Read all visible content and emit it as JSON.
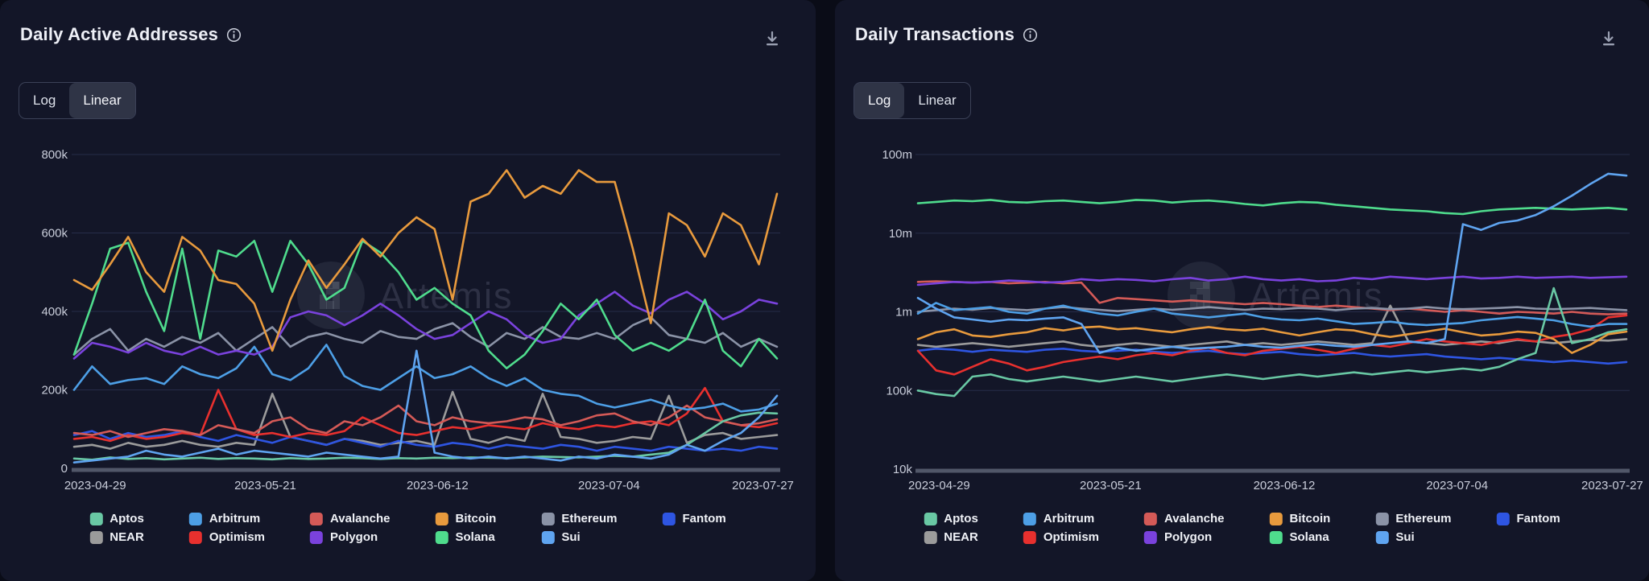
{
  "page": {
    "background": "#0a0c17",
    "panel_background": "#131628",
    "gridline_color": "#262c49",
    "axis_line_color": "#515769",
    "tick_label_color": "#c9cdda"
  },
  "watermark": {
    "text": "Artemis",
    "logo": "artemis-pixel-a-logo"
  },
  "panels": [
    {
      "title": "Daily Active Addresses",
      "info_icon": "info-circle-icon",
      "download_icon": "download-icon",
      "scale_toggle": {
        "options": [
          "Log",
          "Linear"
        ],
        "selected": "Linear"
      }
    },
    {
      "title": "Daily Transactions",
      "info_icon": "info-circle-icon",
      "download_icon": "download-icon",
      "scale_toggle": {
        "options": [
          "Log",
          "Linear"
        ],
        "selected": "Log"
      }
    }
  ],
  "legend": [
    {
      "name": "Aptos",
      "color": "#69c8a4"
    },
    {
      "name": "Arbitrum",
      "color": "#4d9fe6"
    },
    {
      "name": "Avalanche",
      "color": "#d45a57"
    },
    {
      "name": "Bitcoin",
      "color": "#e89a3d"
    },
    {
      "name": "Ethereum",
      "color": "#8b93a7"
    },
    {
      "name": "Fantom",
      "color": "#2e55e2"
    },
    {
      "name": "NEAR",
      "color": "#9b9b9b"
    },
    {
      "name": "Optimism",
      "color": "#e8302e"
    },
    {
      "name": "Polygon",
      "color": "#7a42dd"
    },
    {
      "name": "Solana",
      "color": "#4fdc8d"
    },
    {
      "name": "Sui",
      "color": "#5fa4f0"
    }
  ],
  "chart_data": [
    {
      "type": "line",
      "title": "Daily Active Addresses",
      "yscale": "linear",
      "value_unit": "thousands",
      "ylim_k": [
        0,
        800
      ],
      "yticks": [
        {
          "value_k": 800,
          "label": "800k"
        },
        {
          "value_k": 600,
          "label": "600k"
        },
        {
          "value_k": 400,
          "label": "400k"
        },
        {
          "value_k": 200,
          "label": "200k"
        },
        {
          "value_k": 0,
          "label": "0"
        }
      ],
      "xticks": [
        "2023-04-29",
        "2023-05-21",
        "2023-06-12",
        "2023-07-04",
        "2023-07-27"
      ],
      "series": [
        {
          "name": "Aptos",
          "values_k": [
            25,
            22,
            28,
            24,
            26,
            23,
            25,
            27,
            24,
            26,
            25,
            23,
            26,
            24,
            25,
            27,
            26,
            24,
            26,
            25,
            27,
            26,
            28,
            27,
            26,
            28,
            30,
            29,
            28,
            30,
            32,
            30,
            35,
            40,
            60,
            90,
            120,
            135,
            142,
            140
          ]
        },
        {
          "name": "Arbitrum",
          "values_k": [
            200,
            260,
            215,
            225,
            230,
            215,
            260,
            240,
            230,
            255,
            310,
            240,
            225,
            255,
            315,
            235,
            210,
            200,
            230,
            260,
            230,
            240,
            260,
            230,
            210,
            230,
            200,
            190,
            185,
            165,
            155,
            165,
            175,
            160,
            150,
            155,
            165,
            145,
            150,
            165
          ]
        },
        {
          "name": "Avalanche",
          "values_k": [
            90,
            85,
            95,
            80,
            90,
            100,
            95,
            85,
            110,
            100,
            90,
            120,
            130,
            100,
            90,
            120,
            110,
            130,
            160,
            120,
            110,
            130,
            120,
            115,
            120,
            130,
            125,
            110,
            120,
            135,
            140,
            120,
            110,
            130,
            160,
            130,
            120,
            110,
            115,
            125
          ]
        },
        {
          "name": "Bitcoin",
          "values_k": [
            480,
            455,
            520,
            590,
            500,
            450,
            590,
            555,
            480,
            470,
            420,
            300,
            430,
            530,
            460,
            520,
            585,
            540,
            600,
            640,
            610,
            430,
            680,
            700,
            760,
            690,
            720,
            700,
            760,
            730,
            730,
            560,
            370,
            650,
            620,
            540,
            650,
            620,
            520,
            700
          ]
        },
        {
          "name": "Ethereum",
          "values_k": [
            290,
            330,
            355,
            300,
            330,
            310,
            335,
            320,
            345,
            300,
            330,
            360,
            310,
            335,
            345,
            330,
            320,
            350,
            335,
            330,
            355,
            370,
            335,
            310,
            345,
            330,
            360,
            335,
            330,
            345,
            330,
            365,
            385,
            340,
            330,
            320,
            345,
            310,
            330,
            310
          ]
        },
        {
          "name": "Fantom",
          "values_k": [
            85,
            95,
            75,
            90,
            80,
            85,
            95,
            80,
            70,
            85,
            75,
            65,
            80,
            70,
            60,
            75,
            65,
            55,
            70,
            60,
            55,
            65,
            60,
            50,
            60,
            55,
            50,
            60,
            55,
            45,
            55,
            50,
            45,
            55,
            50,
            45,
            50,
            45,
            55,
            50
          ]
        },
        {
          "name": "NEAR",
          "values_k": [
            55,
            60,
            50,
            65,
            55,
            60,
            70,
            60,
            55,
            65,
            60,
            190,
            80,
            70,
            60,
            75,
            70,
            60,
            65,
            70,
            60,
            195,
            75,
            65,
            80,
            70,
            190,
            80,
            75,
            65,
            70,
            80,
            75,
            185,
            65,
            85,
            90,
            75,
            80,
            85
          ]
        },
        {
          "name": "Optimism",
          "values_k": [
            75,
            80,
            70,
            85,
            75,
            80,
            90,
            85,
            200,
            100,
            85,
            90,
            80,
            90,
            85,
            95,
            130,
            110,
            90,
            85,
            95,
            105,
            100,
            110,
            105,
            100,
            115,
            105,
            100,
            110,
            105,
            115,
            120,
            110,
            140,
            205,
            120,
            110,
            105,
            115
          ]
        },
        {
          "name": "Polygon",
          "values_k": [
            280,
            320,
            310,
            295,
            320,
            300,
            290,
            310,
            290,
            300,
            290,
            310,
            385,
            400,
            390,
            365,
            390,
            420,
            390,
            355,
            330,
            340,
            370,
            400,
            380,
            340,
            320,
            330,
            390,
            420,
            450,
            415,
            395,
            430,
            450,
            420,
            380,
            400,
            430,
            420
          ]
        },
        {
          "name": "Solana",
          "values_k": [
            290,
            420,
            560,
            575,
            450,
            350,
            560,
            330,
            555,
            540,
            580,
            450,
            580,
            520,
            430,
            460,
            580,
            550,
            500,
            430,
            460,
            420,
            390,
            300,
            255,
            290,
            350,
            420,
            380,
            430,
            340,
            300,
            320,
            300,
            330,
            430,
            300,
            260,
            330,
            280
          ]
        },
        {
          "name": "Sui",
          "values_k": [
            15,
            20,
            25,
            30,
            45,
            35,
            30,
            40,
            50,
            35,
            45,
            40,
            35,
            30,
            40,
            35,
            30,
            25,
            30,
            300,
            40,
            30,
            25,
            30,
            25,
            30,
            25,
            20,
            30,
            25,
            35,
            30,
            25,
            35,
            60,
            45,
            70,
            90,
            130,
            185
          ]
        }
      ]
    },
    {
      "type": "line",
      "title": "Daily Transactions",
      "yscale": "log",
      "value_unit": "thousands",
      "ylim_k": [
        10,
        100000
      ],
      "yticks": [
        {
          "value_k": 100000,
          "label": "100m"
        },
        {
          "value_k": 10000,
          "label": "10m"
        },
        {
          "value_k": 1000,
          "label": "1m"
        },
        {
          "value_k": 100,
          "label": "100k"
        },
        {
          "value_k": 10,
          "label": "10k"
        }
      ],
      "xticks": [
        "2023-04-29",
        "2023-05-21",
        "2023-06-12",
        "2023-07-04",
        "2023-07-27"
      ],
      "series": [
        {
          "name": "Aptos",
          "values_k": [
            100,
            90,
            85,
            150,
            160,
            140,
            130,
            140,
            150,
            140,
            130,
            140,
            150,
            140,
            130,
            140,
            150,
            160,
            150,
            140,
            150,
            160,
            150,
            160,
            170,
            160,
            170,
            180,
            170,
            180,
            190,
            180,
            200,
            250,
            300,
            2000,
            400,
            450,
            550,
            600
          ]
        },
        {
          "name": "Arbitrum",
          "values_k": [
            950,
            1300,
            1050,
            1100,
            1150,
            1000,
            950,
            1100,
            1200,
            1050,
            950,
            900,
            1000,
            1100,
            950,
            900,
            850,
            900,
            950,
            850,
            800,
            780,
            820,
            760,
            700,
            720,
            750,
            700,
            680,
            700,
            720,
            780,
            820,
            860,
            820,
            780,
            700,
            650,
            700,
            700
          ]
        },
        {
          "name": "Avalanche",
          "values_k": [
            2400,
            2450,
            2400,
            2350,
            2400,
            2300,
            2350,
            2400,
            2300,
            2350,
            1300,
            1500,
            1450,
            1400,
            1350,
            1400,
            1350,
            1300,
            1250,
            1300,
            1250,
            1200,
            1150,
            1200,
            1150,
            1100,
            1050,
            1100,
            1050,
            1000,
            1050,
            1000,
            950,
            1000,
            980,
            950,
            1000,
            950,
            930,
            950
          ]
        },
        {
          "name": "Bitcoin",
          "values_k": [
            450,
            550,
            600,
            500,
            480,
            520,
            550,
            620,
            580,
            630,
            650,
            600,
            620,
            580,
            550,
            600,
            640,
            600,
            580,
            610,
            550,
            500,
            550,
            600,
            580,
            520,
            480,
            520,
            560,
            610,
            550,
            500,
            520,
            560,
            540,
            450,
            300,
            380,
            520,
            560
          ]
        },
        {
          "name": "Ethereum",
          "values_k": [
            1000,
            1050,
            1100,
            1060,
            1120,
            1080,
            1050,
            1100,
            1150,
            1100,
            1060,
            1020,
            1060,
            1100,
            1060,
            1100,
            1150,
            1100,
            1060,
            1100,
            1080,
            1120,
            1100,
            1050,
            1100,
            1120,
            1080,
            1100,
            1150,
            1100,
            1080,
            1100,
            1120,
            1150,
            1100,
            1080,
            1100,
            1120,
            1080,
            1050
          ]
        },
        {
          "name": "Fantom",
          "values_k": [
            320,
            340,
            330,
            310,
            330,
            320,
            310,
            330,
            340,
            320,
            310,
            320,
            330,
            310,
            300,
            310,
            320,
            300,
            290,
            300,
            310,
            290,
            280,
            290,
            300,
            280,
            270,
            280,
            290,
            270,
            260,
            250,
            260,
            250,
            240,
            230,
            240,
            230,
            220,
            230
          ]
        },
        {
          "name": "NEAR",
          "values_k": [
            380,
            360,
            380,
            400,
            380,
            360,
            380,
            400,
            420,
            380,
            360,
            380,
            400,
            380,
            360,
            380,
            400,
            420,
            380,
            400,
            380,
            400,
            420,
            400,
            380,
            400,
            1200,
            420,
            400,
            380,
            400,
            420,
            400,
            440,
            420,
            400,
            420,
            440,
            430,
            450
          ]
        },
        {
          "name": "Optimism",
          "values_k": [
            320,
            180,
            160,
            200,
            250,
            220,
            180,
            200,
            230,
            250,
            270,
            250,
            280,
            300,
            280,
            320,
            350,
            300,
            280,
            320,
            340,
            360,
            330,
            300,
            340,
            380,
            360,
            400,
            450,
            420,
            400,
            380,
            420,
            450,
            420,
            480,
            520,
            600,
            850,
            900
          ]
        },
        {
          "name": "Polygon",
          "values_k": [
            2200,
            2300,
            2400,
            2350,
            2400,
            2500,
            2450,
            2350,
            2400,
            2600,
            2500,
            2600,
            2550,
            2450,
            2600,
            2700,
            2500,
            2600,
            2800,
            2600,
            2500,
            2600,
            2450,
            2500,
            2700,
            2600,
            2800,
            2700,
            2600,
            2700,
            2800,
            2650,
            2700,
            2800,
            2700,
            2750,
            2800,
            2700,
            2750,
            2800
          ]
        },
        {
          "name": "Solana",
          "values_k": [
            24000,
            25000,
            26000,
            25500,
            26500,
            25000,
            24500,
            25500,
            26000,
            25000,
            24000,
            25000,
            26500,
            26000,
            24500,
            25500,
            26000,
            25000,
            23500,
            22500,
            24000,
            25000,
            24500,
            23000,
            22000,
            21000,
            20000,
            19500,
            19000,
            18000,
            17500,
            19000,
            20000,
            20500,
            21000,
            20500,
            20000,
            20500,
            21000,
            20000
          ]
        },
        {
          "name": "Sui",
          "values_k": [
            1500,
            1100,
            850,
            800,
            750,
            800,
            780,
            820,
            850,
            700,
            300,
            350,
            320,
            340,
            360,
            340,
            350,
            360,
            380,
            360,
            350,
            370,
            390,
            370,
            360,
            380,
            400,
            420,
            400,
            450,
            13000,
            11000,
            13500,
            14500,
            17000,
            22000,
            30000,
            42000,
            57000,
            54000
          ]
        }
      ]
    }
  ]
}
